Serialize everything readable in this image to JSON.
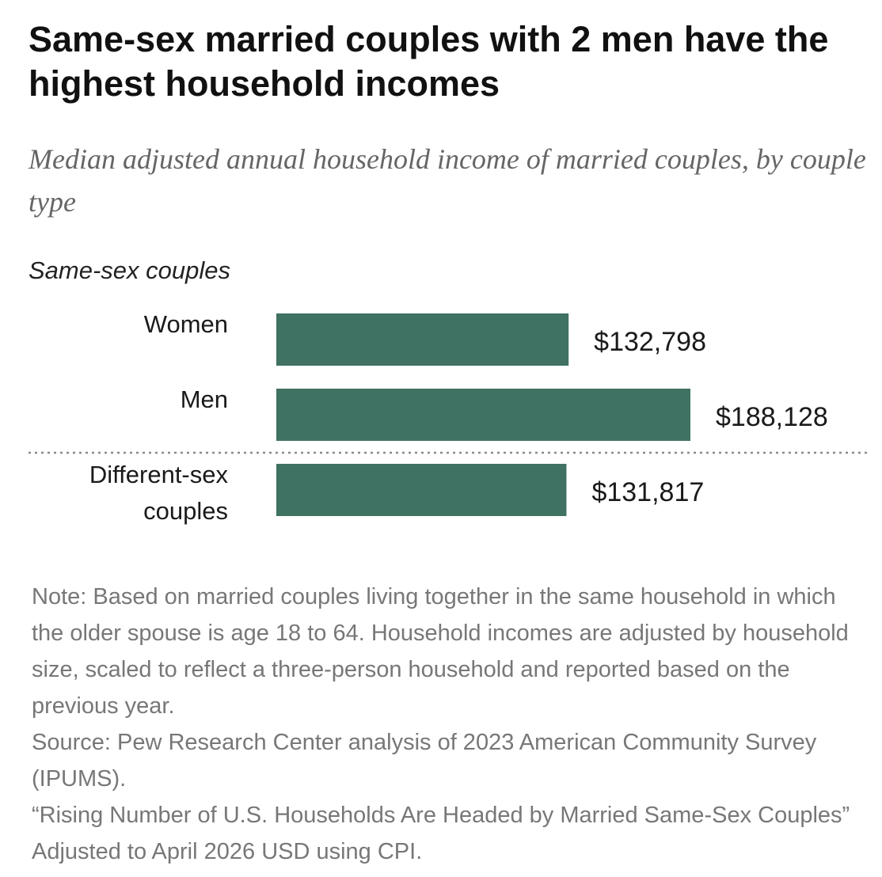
{
  "header": {
    "title": "Same-sex married couples with 2 men have the highest household incomes",
    "subtitle": "Median adjusted annual household income of married couples, by couple type"
  },
  "chart_data": {
    "type": "bar",
    "orientation": "horizontal",
    "groups": [
      {
        "label": "Same-sex couples",
        "categories": [
          "Women",
          "Men"
        ],
        "values": [
          132798,
          188128
        ],
        "value_labels": [
          "$132,798",
          "$188,128"
        ]
      },
      {
        "label": "",
        "categories": [
          "Different-sex couples"
        ],
        "category_lines": [
          [
            "Different-sex",
            "couples"
          ]
        ],
        "values": [
          131817
        ],
        "value_labels": [
          "$131,817"
        ]
      }
    ],
    "xlim": [
      0,
      188128
    ],
    "grid": false,
    "colors": {
      "bar": "#3f7263"
    }
  },
  "footer": {
    "note": "Note: Based on married couples living together in the same household in which the older spouse is age 18 to 64. Household incomes are adjusted by household size, scaled to reflect a three-person household and reported based on the previous year.",
    "source": "Source: Pew Research Center analysis of 2023 American Community Survey (IPUMS).",
    "report": "“Rising Number of U.S. Households Are Headed by Married Same-Sex Couples”  Adjusted to April 2026 USD using CPI."
  }
}
